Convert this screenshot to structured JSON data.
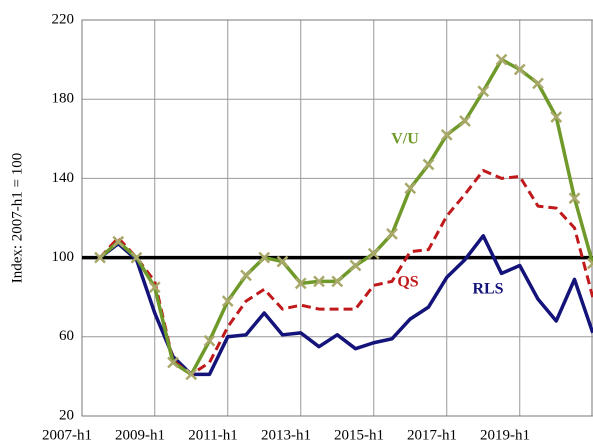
{
  "chart_data": {
    "type": "line",
    "y_label": "Index: 2007-h1 = 100",
    "categories": [
      "2007-h1",
      null,
      null,
      null,
      "2009-h1",
      null,
      null,
      null,
      "2011-h1",
      null,
      null,
      null,
      "2013-h1",
      null,
      null,
      null,
      "2015-h1",
      null,
      null,
      null,
      "2017-h1",
      null,
      null,
      null,
      "2019-h1",
      null,
      null,
      null
    ],
    "series": [
      {
        "name": "V/U",
        "color": "#6f9a2a",
        "marker_color": "#a9a86a",
        "dash": false,
        "values": [
          100,
          108,
          100,
          85,
          47,
          41,
          58,
          78,
          91,
          100,
          98,
          87,
          88,
          88,
          96,
          102,
          112,
          135,
          147,
          162,
          169,
          184,
          200,
          195,
          188,
          171,
          130,
          97
        ]
      },
      {
        "name": "QS",
        "color": "#c0191b",
        "dash": true,
        "values": [
          100,
          110,
          100,
          88,
          48,
          41,
          47,
          65,
          78,
          84,
          74,
          76,
          74,
          74,
          74,
          86,
          88,
          103,
          104,
          121,
          132,
          144,
          140,
          141,
          126,
          125,
          115,
          80
        ]
      },
      {
        "name": "RLS",
        "color": "#14137a",
        "dash": false,
        "values": [
          100,
          107,
          99,
          72,
          50,
          41,
          41,
          60,
          61,
          72,
          61,
          62,
          55,
          61,
          54,
          57,
          59,
          69,
          75,
          90,
          99,
          111,
          92,
          96,
          79,
          68,
          89,
          62
        ]
      }
    ],
    "reference_line": 100,
    "ylim": [
      20,
      220
    ],
    "yticks": [
      20,
      60,
      100,
      140,
      180,
      220
    ],
    "grid": true
  }
}
